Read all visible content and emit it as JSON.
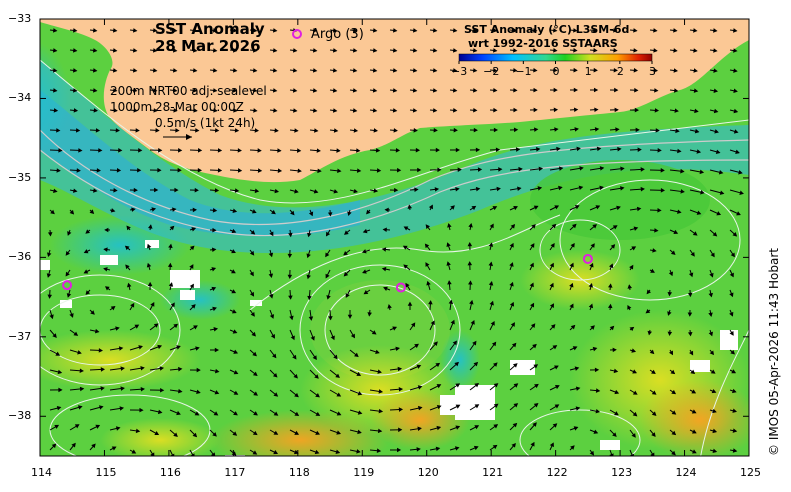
{
  "title": {
    "line1": "SST Anomaly",
    "line2": "28 Mar 2026"
  },
  "argo_legend": {
    "label": "Argo (3)",
    "color": "#e020e0"
  },
  "colorbar": {
    "title_line1": "SST Anomaly (°C) L3SM-6d",
    "title_line2": "wrt 1992-2016 SSTAARS",
    "ticks": [
      "-3",
      "-2",
      "-1",
      "0",
      "1",
      "2",
      "3"
    ],
    "range": [
      -3,
      3
    ],
    "colors": [
      "#000090",
      "#0040ff",
      "#00c0ff",
      "#30d890",
      "#20d020",
      "#d0e020",
      "#ffa000",
      "#e02000",
      "#900000"
    ]
  },
  "legend_info": {
    "line1": "200m  NRT00 adj. sealevel",
    "line2": "1000m",
    "line2b": "28-Mar 00:00Z",
    "line3": "0.5m/s (1kt 24h)"
  },
  "axes": {
    "x_ticks": [
      "114",
      "115",
      "116",
      "117",
      "118",
      "119",
      "120",
      "121",
      "122",
      "123",
      "124",
      "125"
    ],
    "y_ticks": [
      "-33",
      "-34",
      "-35",
      "-36",
      "-37",
      "-38"
    ],
    "x_range": [
      114,
      125
    ],
    "y_range": [
      -38.5,
      -33
    ]
  },
  "argo_floats": [
    {
      "lon": 114.42,
      "lat": -36.35
    },
    {
      "lon": 119.6,
      "lat": -36.38
    },
    {
      "lon": 122.5,
      "lat": -36.02
    }
  ],
  "land_color": "#fbc895",
  "copyright": "© IMOS 05-Apr-2026 11:43 Hobart"
}
